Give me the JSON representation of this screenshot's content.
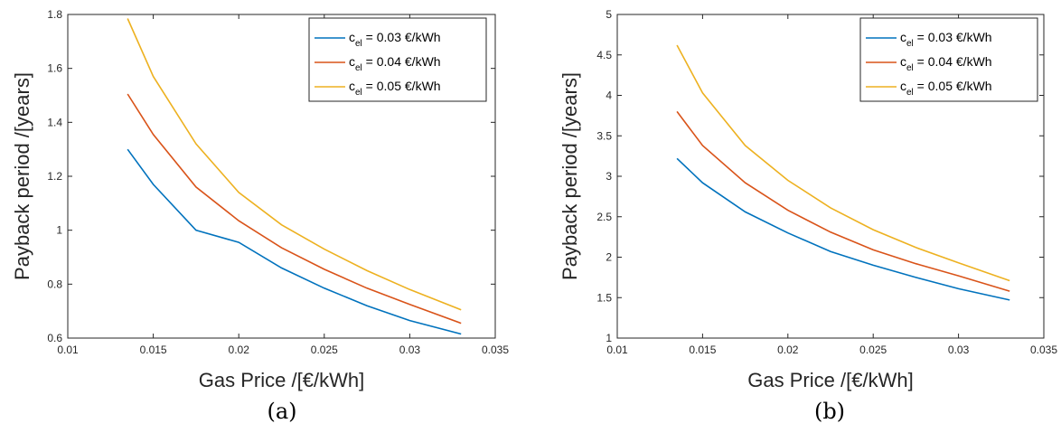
{
  "chart_data": [
    {
      "type": "line",
      "panel": "(a)",
      "xlabel": "Gas Price /[€/kWh]",
      "ylabel": "Payback period /[years]",
      "xlim": [
        0.01,
        0.035
      ],
      "ylim": [
        0.6,
        1.8
      ],
      "xticks": [
        "0.01",
        "0.015",
        "0.02",
        "0.025",
        "0.03",
        "0.035"
      ],
      "yticks": [
        "0.6",
        "0.8",
        "1",
        "1.2",
        "1.4",
        "1.6",
        "1.8"
      ],
      "legend": "top-right",
      "x": [
        0.0135,
        0.015,
        0.0175,
        0.02,
        0.0225,
        0.025,
        0.0275,
        0.03,
        0.033
      ],
      "series": [
        {
          "label": "c",
          "sub": "el",
          "rest": " =  0.03 €/kWh",
          "color": "#0072bd",
          "values": [
            1.3,
            1.17,
            1.0,
            0.955,
            0.86,
            0.785,
            0.72,
            0.665,
            0.615
          ]
        },
        {
          "label": "c",
          "sub": "el",
          "rest": " =  0.04 €/kWh",
          "color": "#d95319",
          "values": [
            1.505,
            1.355,
            1.16,
            1.035,
            0.935,
            0.855,
            0.785,
            0.725,
            0.655
          ]
        },
        {
          "label": "c",
          "sub": "el",
          "rest": " =  0.05 €/kWh",
          "color": "#edb120",
          "values": [
            1.785,
            1.57,
            1.32,
            1.14,
            1.02,
            0.93,
            0.85,
            0.78,
            0.705
          ]
        }
      ]
    },
    {
      "type": "line",
      "panel": "(b)",
      "xlabel": "Gas Price /[€/kWh]",
      "ylabel": "Payback period /[years]",
      "xlim": [
        0.01,
        0.035
      ],
      "ylim": [
        1,
        5
      ],
      "xticks": [
        "0.01",
        "0.015",
        "0.02",
        "0.025",
        "0.03",
        "0.035"
      ],
      "yticks": [
        "1",
        "1.5",
        "2",
        "2.5",
        "3",
        "3.5",
        "4",
        "4.5",
        "5"
      ],
      "legend": "top-right",
      "x": [
        0.0135,
        0.015,
        0.0175,
        0.02,
        0.0225,
        0.025,
        0.0275,
        0.03,
        0.033
      ],
      "series": [
        {
          "label": "c",
          "sub": "el",
          "rest": " =  0.03 €/kWh",
          "color": "#0072bd",
          "values": [
            3.22,
            2.92,
            2.56,
            2.3,
            2.07,
            1.9,
            1.75,
            1.61,
            1.47
          ]
        },
        {
          "label": "c",
          "sub": "el",
          "rest": " =  0.04 €/kWh",
          "color": "#d95319",
          "values": [
            3.8,
            3.38,
            2.92,
            2.58,
            2.31,
            2.09,
            1.92,
            1.77,
            1.58
          ]
        },
        {
          "label": "c",
          "sub": "el",
          "rest": " =  0.05 €/kWh",
          "color": "#edb120",
          "values": [
            4.62,
            4.03,
            3.38,
            2.95,
            2.61,
            2.34,
            2.12,
            1.93,
            1.71
          ]
        }
      ]
    }
  ]
}
